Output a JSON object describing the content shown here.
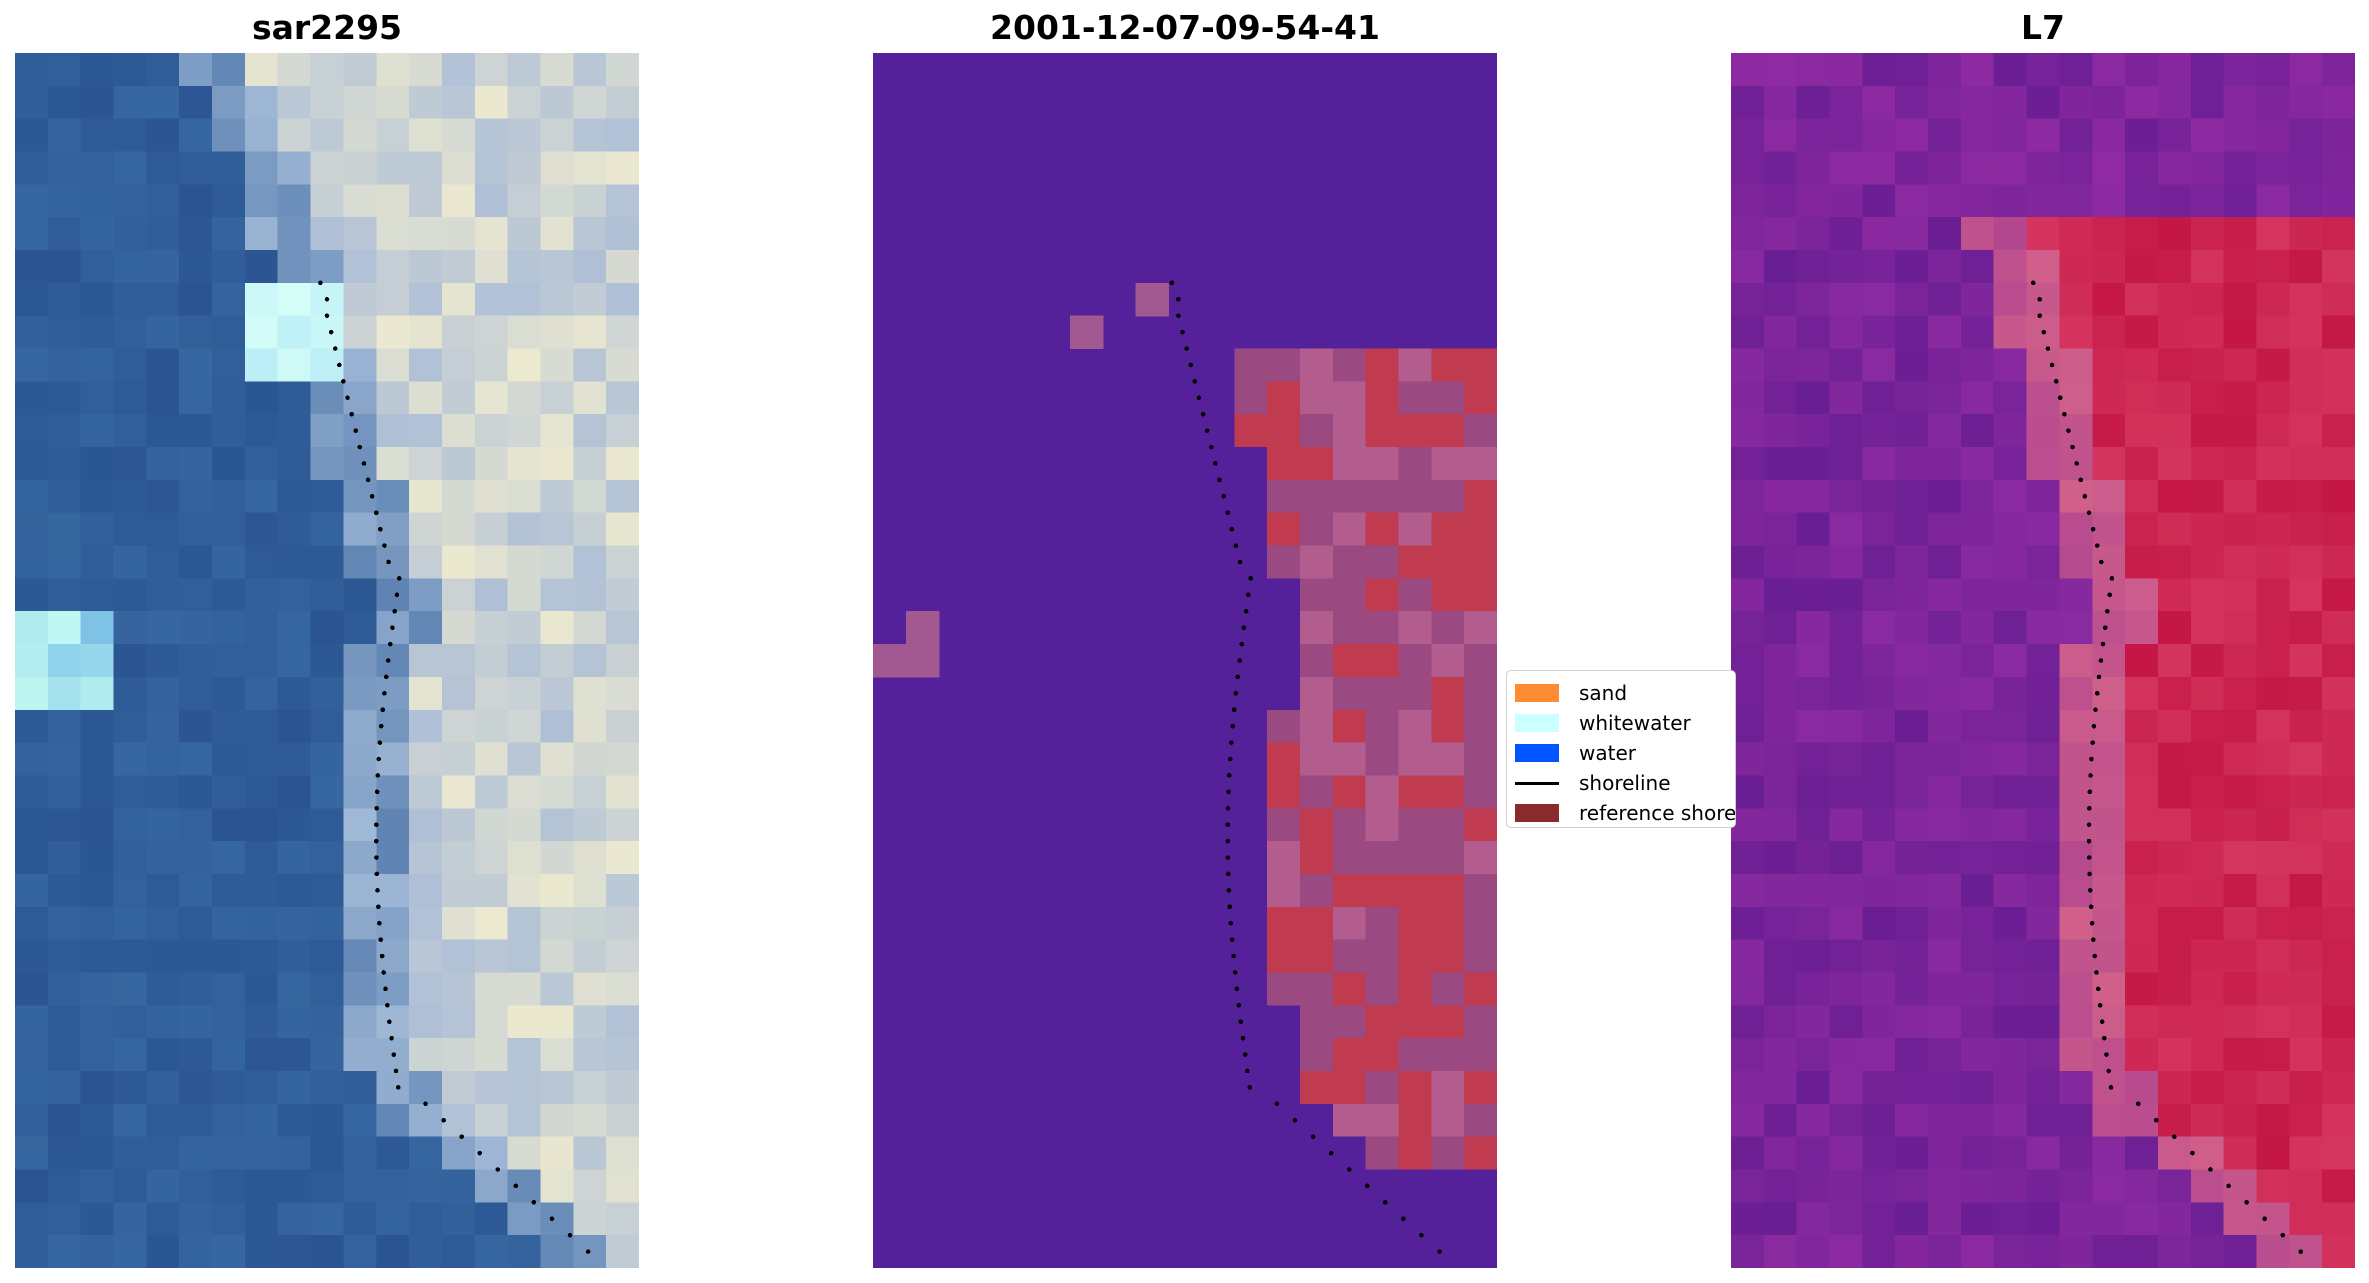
{
  "titles": {
    "left": "sar2295",
    "middle": "2001-12-07-09-54-41",
    "right": "L7"
  },
  "legend": {
    "items": [
      {
        "label": "sand",
        "color": "#ff8c33"
      },
      {
        "label": "whitewater",
        "color": "#ccffff"
      },
      {
        "label": "water",
        "color": "#0055ff"
      },
      {
        "label": "shoreline",
        "color": "#000000"
      },
      {
        "label": "reference shoreline",
        "color": "#8b2a2a"
      }
    ]
  },
  "colors": {
    "classified_background": "#54219a",
    "sea_rgb": "#2e5b99",
    "index_background": "#7a239a"
  }
}
